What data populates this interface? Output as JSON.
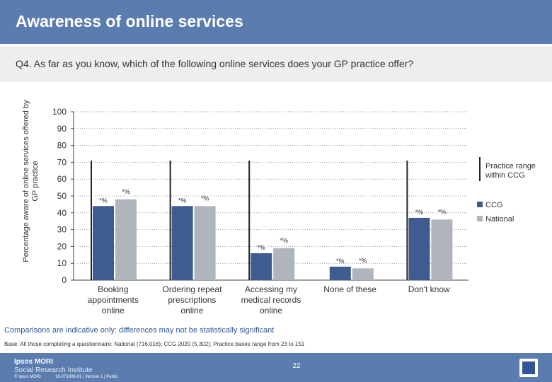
{
  "header": {
    "title": "Awareness of online services"
  },
  "question": "Q4. As far as you know, which of the following online services does your GP practice offer?",
  "colors": {
    "ccg": "#3e5c8f",
    "national": "#b0b4bd",
    "range": "#222222",
    "header": "#5b7cae"
  },
  "chart_data": {
    "type": "bar",
    "ylabel": "Percentage aware of online services offered by GP practice",
    "ylim": [
      0,
      100
    ],
    "yticks": [
      0,
      10,
      20,
      30,
      40,
      50,
      60,
      70,
      80,
      90,
      100
    ],
    "categories": [
      "Booking appointments online",
      "Ordering repeat prescriptions online",
      "Accessing my medical records online",
      "None of these",
      "Don't know"
    ],
    "series": [
      {
        "name": "CCG",
        "values": [
          44,
          44,
          16,
          8,
          37
        ],
        "labels": [
          "*%",
          "*%",
          "*%",
          "*%",
          "*%"
        ]
      },
      {
        "name": "National",
        "values": [
          48,
          44,
          19,
          7,
          36
        ],
        "labels": [
          "*%",
          "*%",
          "*%",
          "*%",
          "*%"
        ]
      }
    ],
    "range": {
      "name": "Practice range within CCG",
      "low": [
        0,
        0,
        0,
        0,
        0
      ],
      "high": [
        71,
        71,
        71,
        71,
        71
      ]
    },
    "range_visible": [
      true,
      true,
      true,
      false,
      true
    ],
    "legend": [
      "Practice range within CCG",
      "CCG",
      "National"
    ],
    "legend_position": "right"
  },
  "notes": {
    "comparison": "Comparisons are indicative only: differences may not be statistically significant",
    "base": "Base: All those completing a questionnaire: National (716,016); CCG 2020 (5,302); Practice bases range from 23 to 151"
  },
  "footer": {
    "brand": "Ipsos MORI",
    "sub_brand": "Social Research Institute",
    "copyright": "© Ipsos MORI",
    "version": "18-071809-01 | Version 1 | Public",
    "page_number": "22"
  }
}
